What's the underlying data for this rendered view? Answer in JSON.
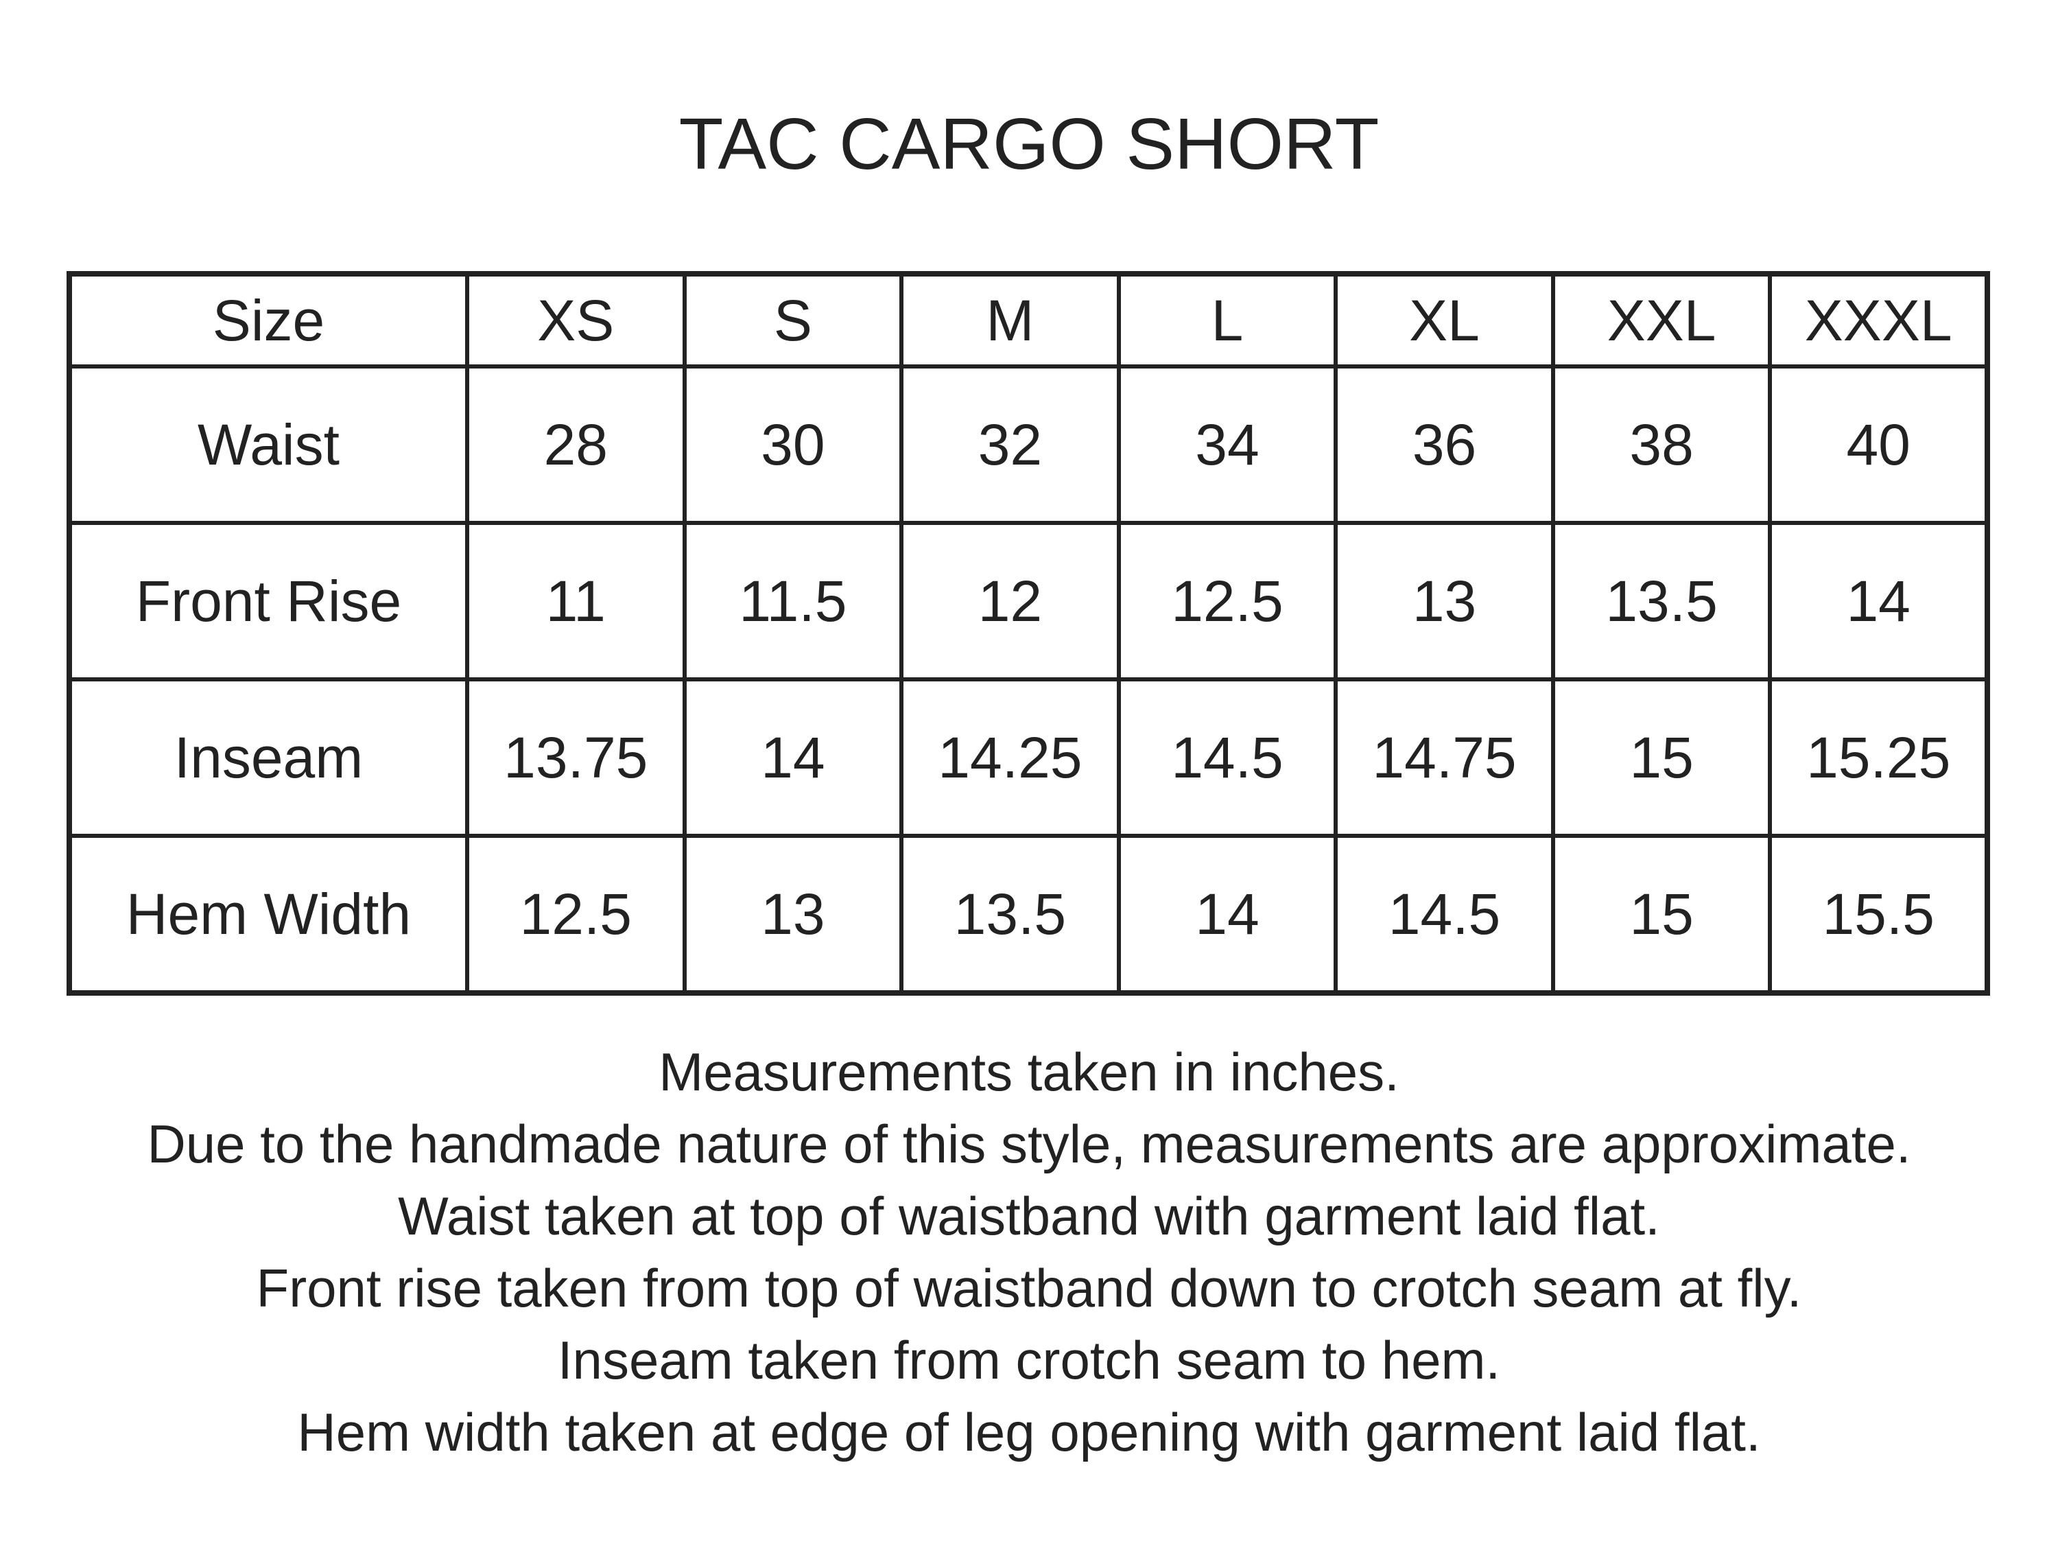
{
  "title": "TAC CARGO SHORT",
  "table": {
    "header": [
      "Size",
      "XS",
      "S",
      "M",
      "L",
      "XL",
      "XXL",
      "XXXL"
    ],
    "rows": [
      [
        "Waist",
        "28",
        "30",
        "32",
        "34",
        "36",
        "38",
        "40"
      ],
      [
        "Front Rise",
        "11",
        "11.5",
        "12",
        "12.5",
        "13",
        "13.5",
        "14"
      ],
      [
        "Inseam",
        "13.75",
        "14",
        "14.25",
        "14.5",
        "14.75",
        "15",
        "15.25"
      ],
      [
        "Hem Width",
        "12.5",
        "13",
        "13.5",
        "14",
        "14.5",
        "15",
        "15.5"
      ]
    ]
  },
  "notes": [
    "Measurements taken in inches.",
    "Due to the handmade nature of this style, measurements are approximate.",
    "Waist taken at top of waistband with garment laid flat.",
    "Front rise taken from top of waistband down to crotch seam at fly.",
    "Inseam taken from crotch seam to hem.",
    "Hem width taken at edge of leg opening with garment laid flat."
  ]
}
